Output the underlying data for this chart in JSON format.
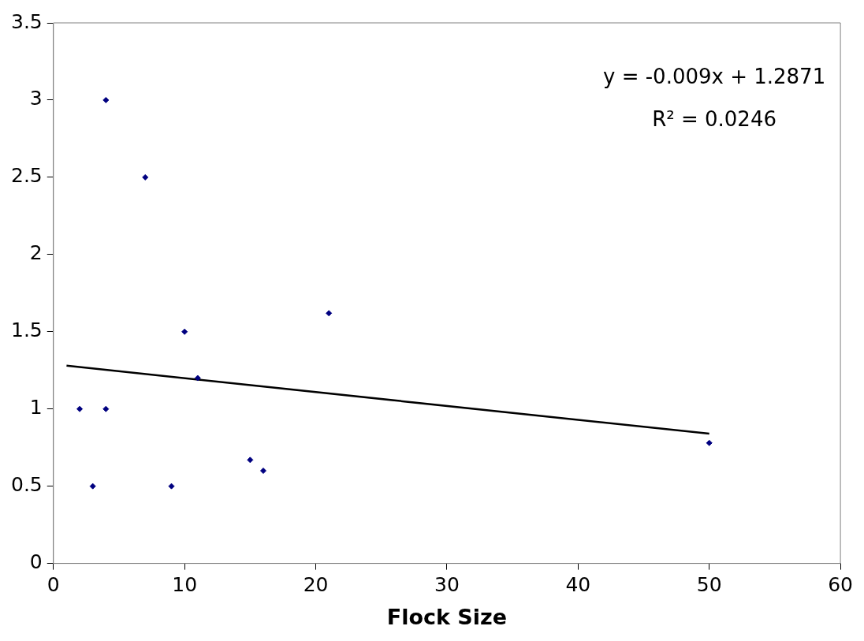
{
  "chart_data": {
    "type": "scatter",
    "xlabel": "Flock Size",
    "series": [
      {
        "color": "#000080",
        "x": [
          2,
          4,
          7,
          4,
          3,
          9,
          10,
          11,
          15,
          16,
          21,
          50
        ],
        "values": [
          1.0,
          3.0,
          2.5,
          1.0,
          0.5,
          0.5,
          1.5,
          1.2,
          0.67,
          0.6,
          1.62,
          0.78
        ]
      },
      {
        "type": "line",
        "marker": "none",
        "color": "#000000",
        "x": [
          1,
          50
        ],
        "values": [
          1.28,
          0.84
        ]
      }
    ],
    "xlim": [
      0,
      60
    ],
    "xticks": [
      0,
      10,
      20,
      30,
      40,
      50,
      60
    ],
    "ylim": [
      0,
      3.5
    ],
    "yticks": [
      0,
      0.5,
      1,
      1.5,
      2,
      2.5,
      3,
      3.5
    ],
    "marker": "diamond",
    "grid": false,
    "legend": false,
    "annotations": [
      "y = -0.009x + 1.2871",
      "R² = 0.0246"
    ]
  }
}
